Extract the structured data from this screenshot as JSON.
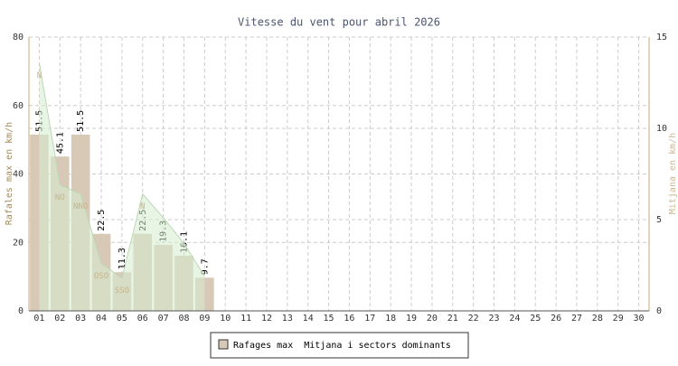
{
  "chart_data": {
    "type": "bar",
    "title": "Vitesse du vent pour abril 2026",
    "categories": [
      "01",
      "02",
      "03",
      "04",
      "05",
      "06",
      "07",
      "08",
      "09",
      "10",
      "11",
      "12",
      "13",
      "14",
      "15",
      "16",
      "17",
      "18",
      "19",
      "20",
      "21",
      "22",
      "23",
      "24",
      "25",
      "26",
      "27",
      "28",
      "29",
      "30"
    ],
    "series": [
      {
        "name": "Rafages max",
        "type": "bar",
        "color": "#d8c9b6",
        "values": [
          51.5,
          45.1,
          51.5,
          22.5,
          11.3,
          22.5,
          19.3,
          16.1,
          9.7,
          null,
          null,
          null,
          null,
          null,
          null,
          null,
          null,
          null,
          null,
          null,
          null,
          null,
          null,
          null,
          null,
          null,
          null,
          null,
          null,
          null
        ]
      },
      {
        "name": "Mitjana i sectors dominants",
        "type": "area",
        "axis": "y2",
        "color": "#d6ecd0",
        "values": [
          13.6,
          6.9,
          6.4,
          2.6,
          1.8,
          6.4,
          5.1,
          3.7,
          1.9,
          null,
          null,
          null,
          null,
          null,
          null,
          null,
          null,
          null,
          null,
          null,
          null,
          null,
          null,
          null,
          null,
          null,
          null,
          null,
          null,
          null
        ],
        "sectors": [
          "N",
          "NO",
          "NNO",
          "OSO",
          "SSO",
          "N",
          null,
          null,
          null,
          null,
          null,
          null,
          null,
          null,
          null,
          null,
          null,
          null,
          null,
          null,
          null,
          null,
          null,
          null,
          null,
          null,
          null,
          null,
          null,
          null
        ]
      }
    ],
    "ylabel": "Rafales max en km/h",
    "y2label": "Mitjana en km/h",
    "ylim": [
      0,
      80
    ],
    "yticks": [
      0,
      20,
      40,
      60,
      80
    ],
    "y2lim": [
      0,
      15
    ],
    "y2ticks": [
      0,
      5,
      10,
      15
    ],
    "grid": true
  }
}
